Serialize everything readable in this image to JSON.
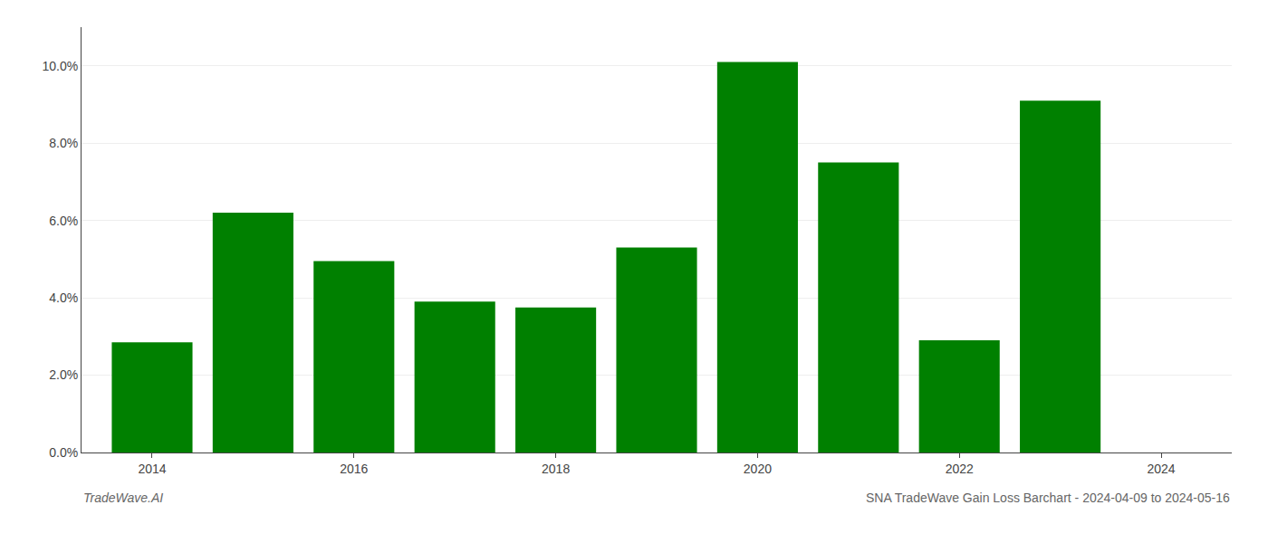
{
  "chart_data": {
    "type": "bar",
    "title": "SNA TradeWave Gain Loss Barchart - 2024-04-09 to 2024-05-16",
    "annotations": [
      "TradeWave.AI"
    ],
    "x": [
      2014,
      2015,
      2016,
      2017,
      2018,
      2019,
      2020,
      2021,
      2022,
      2023
    ],
    "values": [
      0.0285,
      0.062,
      0.0495,
      0.039,
      0.0375,
      0.053,
      0.101,
      0.075,
      0.029,
      0.091
    ],
    "color": "#008000",
    "xlim": [
      2013.3,
      2024.7
    ],
    "xticks": [
      2014,
      2016,
      2018,
      2020,
      2022,
      2024
    ],
    "ylim": [
      0,
      0.11
    ],
    "yticks": [
      {
        "value": 0.0,
        "label": "0.0%"
      },
      {
        "value": 0.02,
        "label": "2.0%"
      },
      {
        "value": 0.04,
        "label": "4.0%"
      },
      {
        "value": 0.06,
        "label": "6.0%"
      },
      {
        "value": 0.08,
        "label": "8.0%"
      },
      {
        "value": 0.1,
        "label": "10.0%"
      }
    ],
    "grid": true
  }
}
